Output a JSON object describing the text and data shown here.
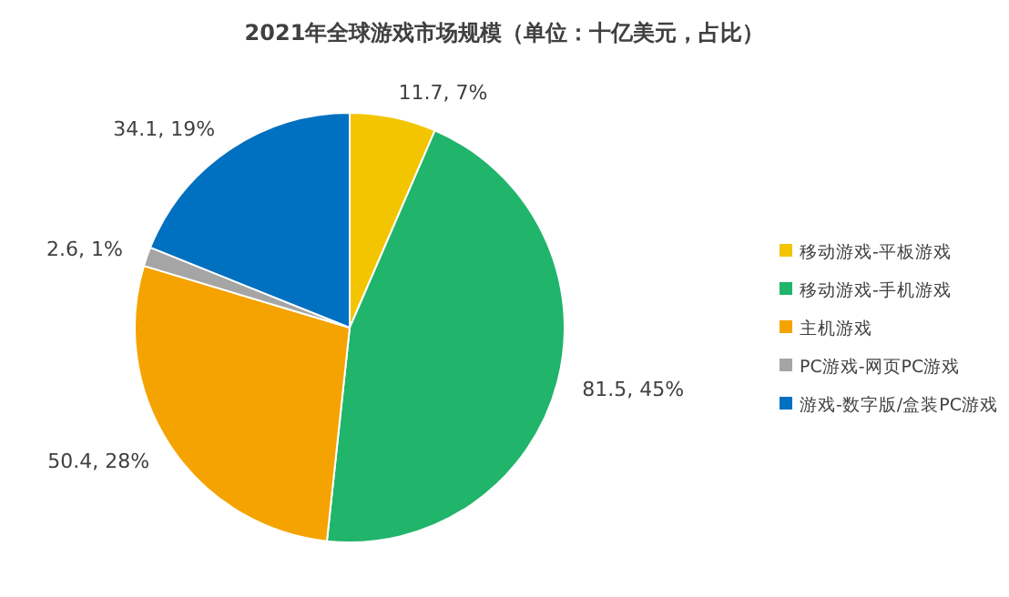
{
  "chart_data": {
    "type": "pie",
    "title": "2021年全球游戏市场规模（单位：十亿美元，占比）",
    "categories": [
      "移动游戏-平板游戏",
      "移动游戏-手机游戏",
      "主机游戏",
      "PC游戏-网页PC游戏",
      "游戏-数字版/盒装PC游戏"
    ],
    "values": [
      11.7,
      81.5,
      50.4,
      2.6,
      34.1
    ],
    "colors": [
      "#f2c500",
      "#21b46b",
      "#f5a300",
      "#a5a5a5",
      "#0070c0"
    ],
    "value_labels": [
      "11.7, 7%",
      "81.5, 45%",
      "50.4, 28%",
      "2.6, 1%",
      "34.1, 19%"
    ],
    "legend": "right"
  }
}
